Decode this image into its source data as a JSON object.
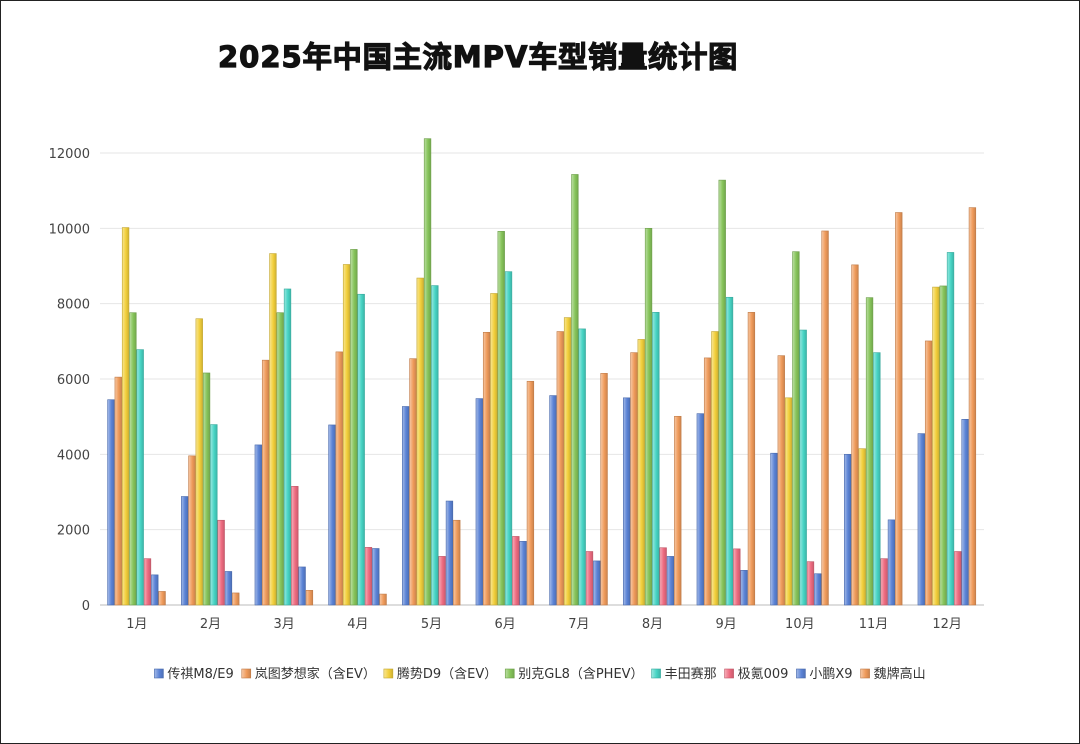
{
  "chart_data": {
    "type": "bar",
    "title": "2025年中国主流MPV车型销量统计图",
    "categories": [
      "1月",
      "2月",
      "3月",
      "4月",
      "5月",
      "6月",
      "7月",
      "8月",
      "9月",
      "10月",
      "11月",
      "12月"
    ],
    "ylim": [
      0,
      12000
    ],
    "yticks": [
      0,
      2000,
      4000,
      6000,
      8000,
      10000,
      12000
    ],
    "grid": true,
    "legend_position": "bottom",
    "series": [
      {
        "name": "传祺M8/E9",
        "color": "#5b83d6",
        "values": [
          5450,
          2880,
          4250,
          4780,
          5270,
          5480,
          5560,
          5500,
          5080,
          4030,
          4000,
          4550
        ]
      },
      {
        "name": "岚图梦想家（含EV）",
        "color": "#ef9a5a",
        "values": [
          6050,
          3960,
          6500,
          6720,
          6540,
          7240,
          7260,
          6700,
          6560,
          6620,
          9030,
          7010
        ]
      },
      {
        "name": "腾势D9（含EV）",
        "color": "#f2cf3b",
        "values": [
          10020,
          7600,
          9330,
          9040,
          8680,
          8270,
          7630,
          7050,
          7260,
          5500,
          4150,
          8440
        ]
      },
      {
        "name": "别克GL8（含PHEV）",
        "color": "#86c45a",
        "values": [
          7760,
          6160,
          7760,
          9440,
          12380,
          9920,
          11430,
          10000,
          11280,
          9380,
          8160,
          8470
        ]
      },
      {
        "name": "丰田赛那",
        "color": "#46d4c4",
        "values": [
          6780,
          4790,
          8390,
          8250,
          8480,
          8850,
          7330,
          7770,
          8170,
          7300,
          6700,
          9360
        ]
      },
      {
        "name": "极氪009",
        "color": "#ee6b80",
        "values": [
          1230,
          2250,
          3150,
          1530,
          1290,
          1820,
          1420,
          1520,
          1490,
          1150,
          1230,
          1420
        ]
      },
      {
        "name": "小鹏X9",
        "color": "#5b83d6",
        "values": [
          800,
          890,
          1010,
          1500,
          2760,
          1690,
          1170,
          1290,
          920,
          830,
          2260,
          4930
        ]
      },
      {
        "name": "魏牌高山",
        "color": "#ef9a5a",
        "values": [
          360,
          320,
          390,
          290,
          2250,
          5940,
          6150,
          5010,
          7770,
          9930,
          10420,
          10550
        ]
      }
    ]
  }
}
